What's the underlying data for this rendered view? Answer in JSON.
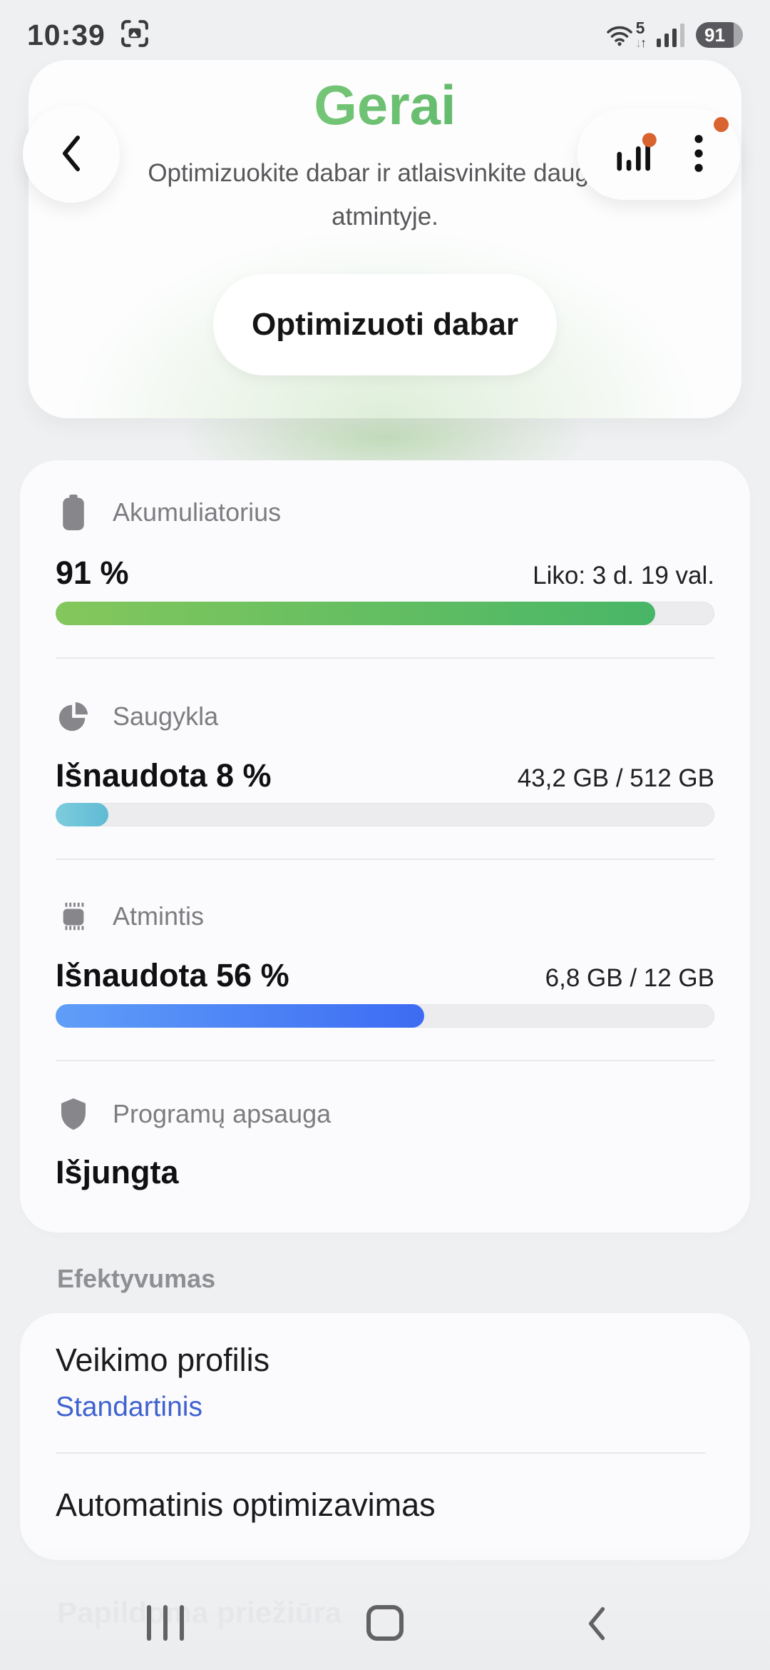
{
  "status_bar": {
    "time": "10:39",
    "network_badge": "5",
    "battery_percent": "91"
  },
  "header": {
    "score_label": "Gerai",
    "subtitle_line1": "Optimizuokite dabar ir atlaisvinkite daugiau",
    "subtitle_line2": "atmintyje.",
    "optimize_button_label": "Optimizuoti dabar"
  },
  "metrics": {
    "battery": {
      "label": "Akumuliatorius",
      "usage": "91 %",
      "detail": "Liko: 3 d. 19 val.",
      "percent": 91
    },
    "storage": {
      "label": "Saugykla",
      "usage": "Išnaudota 8 %",
      "detail": "43,2 GB / 512 GB",
      "percent": 8
    },
    "memory": {
      "label": "Atmintis",
      "usage": "Išnaudota 56 %",
      "detail": "6,8 GB / 12 GB",
      "percent": 56
    },
    "app_protection": {
      "label": "Programų apsauga",
      "status": "Išjungta"
    }
  },
  "performance": {
    "section_title": "Efektyvumas",
    "profile_label": "Veikimo profilis",
    "profile_value": "Standartinis",
    "auto_optimization_label": "Automatinis optimizavimas"
  },
  "extra_care": {
    "section_title": "Papildoma priežiūra"
  },
  "colors": {
    "score_green_start": "#8fd483",
    "score_green_end": "#4bad61",
    "battery_bar_start": "#84c75c",
    "battery_bar_end": "#48b667",
    "storage_bar": "#5fbbd4",
    "memory_bar_start": "#5f9ef8",
    "memory_bar_end": "#3d6bf3",
    "accent_blue": "#3f62cf",
    "badge_orange": "#d9632f"
  }
}
